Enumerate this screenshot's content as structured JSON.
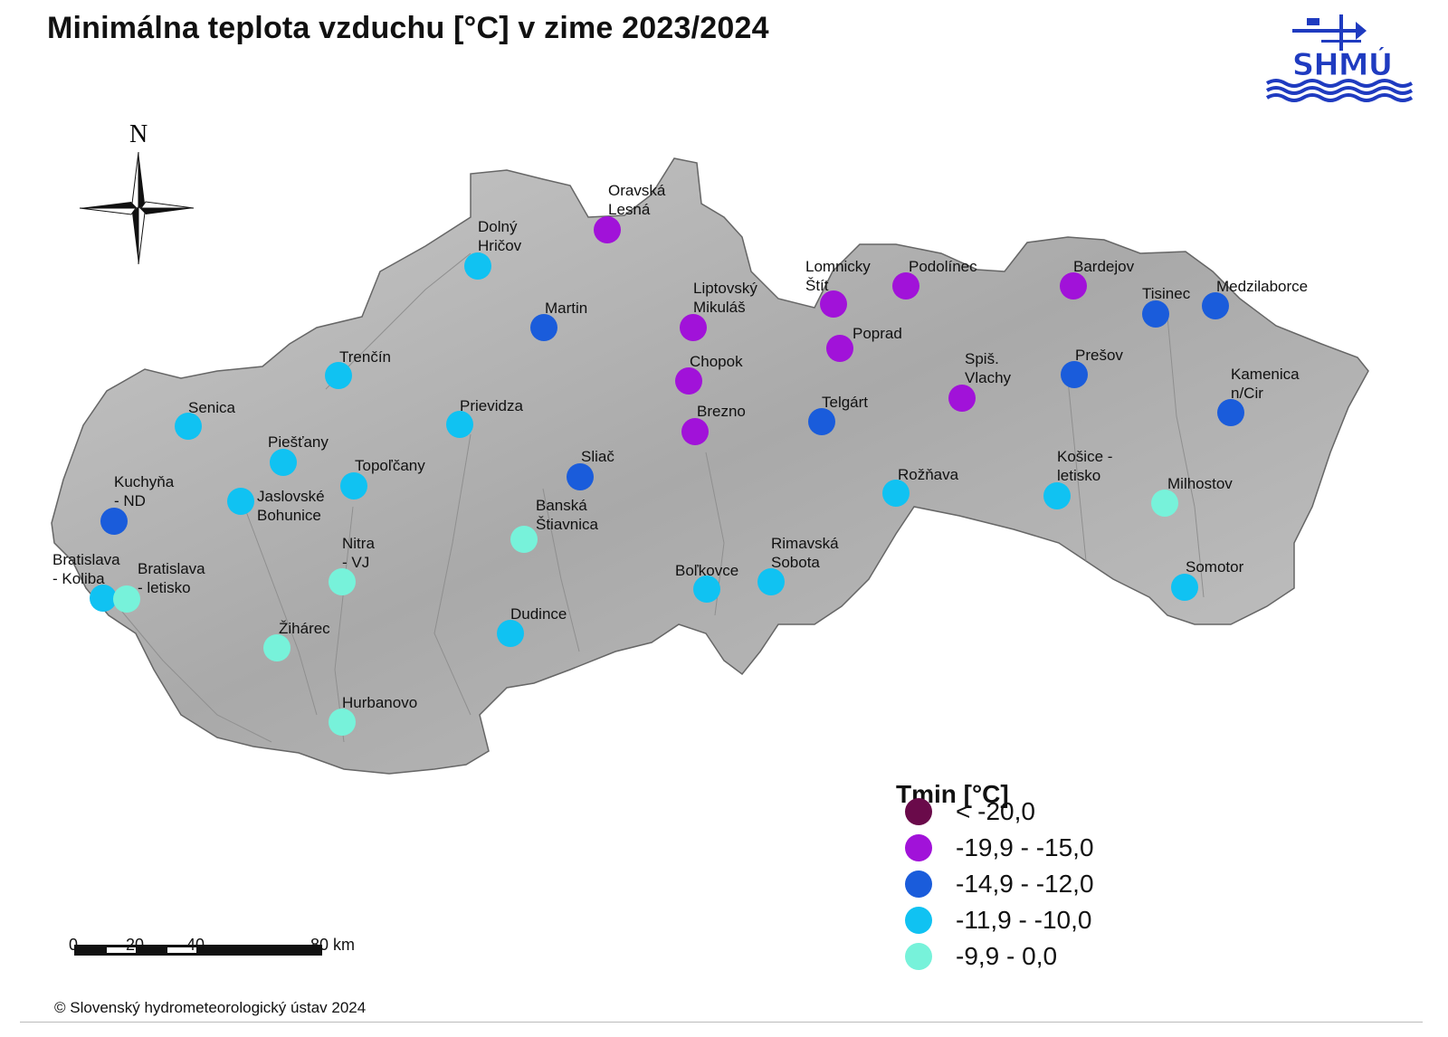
{
  "title": "Minimálna teplota vzduchu [°C] v zime 2023/2024",
  "logo_text": "SHMÚ",
  "north_label": "N",
  "legend": {
    "title": "Tmin [°C]",
    "classes": [
      {
        "label": "< -20,0",
        "color": "#6a0a4a"
      },
      {
        "label": "-19,9 - -15,0",
        "color": "#a112d9"
      },
      {
        "label": "-14,9 - -12,0",
        "color": "#1a5cdb"
      },
      {
        "label": "-11,9 - -10,0",
        "color": "#10c2f2"
      },
      {
        "label": "-9,9  - 0,0",
        "color": "#77f2da"
      }
    ]
  },
  "scale_bar": {
    "labels": [
      "0",
      "20",
      "40",
      "80 km"
    ]
  },
  "copyright": "© Slovenský hydrometeorologický ústav 2024",
  "stations": [
    {
      "name": "Oravská\nLesná",
      "class": 1
    },
    {
      "name": "Dolný\nHričov",
      "class": 3
    },
    {
      "name": "Martin",
      "class": 2
    },
    {
      "name": "Liptovský\nMikuláš",
      "class": 1
    },
    {
      "name": "Lomnicky\nŠtít",
      "class": 1
    },
    {
      "name": "Podolínec",
      "class": 1
    },
    {
      "name": "Bardejov",
      "class": 1
    },
    {
      "name": "Tisinec",
      "class": 2
    },
    {
      "name": "Medzilaborce",
      "class": 2
    },
    {
      "name": "Poprad",
      "class": 1
    },
    {
      "name": "Chopok",
      "class": 1
    },
    {
      "name": "Trenčín",
      "class": 3
    },
    {
      "name": "Prešov",
      "class": 2
    },
    {
      "name": "Spiš.\nVlachy",
      "class": 1
    },
    {
      "name": "Kamenica\nn/Cir",
      "class": 2
    },
    {
      "name": "Prievidza",
      "class": 3
    },
    {
      "name": "Telgárt",
      "class": 2
    },
    {
      "name": "Brezno",
      "class": 1
    },
    {
      "name": "Senica",
      "class": 3
    },
    {
      "name": "Piešťany",
      "class": 3
    },
    {
      "name": "Sliač",
      "class": 2
    },
    {
      "name": "Topoľčany",
      "class": 3
    },
    {
      "name": "Kuchyňa\n- ND",
      "class": 2
    },
    {
      "name": "Jaslovské\nBohunice",
      "class": 3
    },
    {
      "name": "Rožňava",
      "class": 3
    },
    {
      "name": "Košice -\nletisko",
      "class": 3
    },
    {
      "name": "Milhostov",
      "class": 4
    },
    {
      "name": "Banská\nŠtiavnica",
      "class": 4
    },
    {
      "name": "Nitra\n- VJ",
      "class": 4
    },
    {
      "name": "Bratislava\n- Koliba",
      "class": 3
    },
    {
      "name": "Bratislava\n- letisko",
      "class": 4
    },
    {
      "name": "Rimavská\nSobota",
      "class": 3
    },
    {
      "name": "Boľkovce",
      "class": 3
    },
    {
      "name": "Somotor",
      "class": 3
    },
    {
      "name": "Dudince",
      "class": 3
    },
    {
      "name": "Žihárec",
      "class": 4
    },
    {
      "name": "Hurbanovo",
      "class": 4
    }
  ]
}
